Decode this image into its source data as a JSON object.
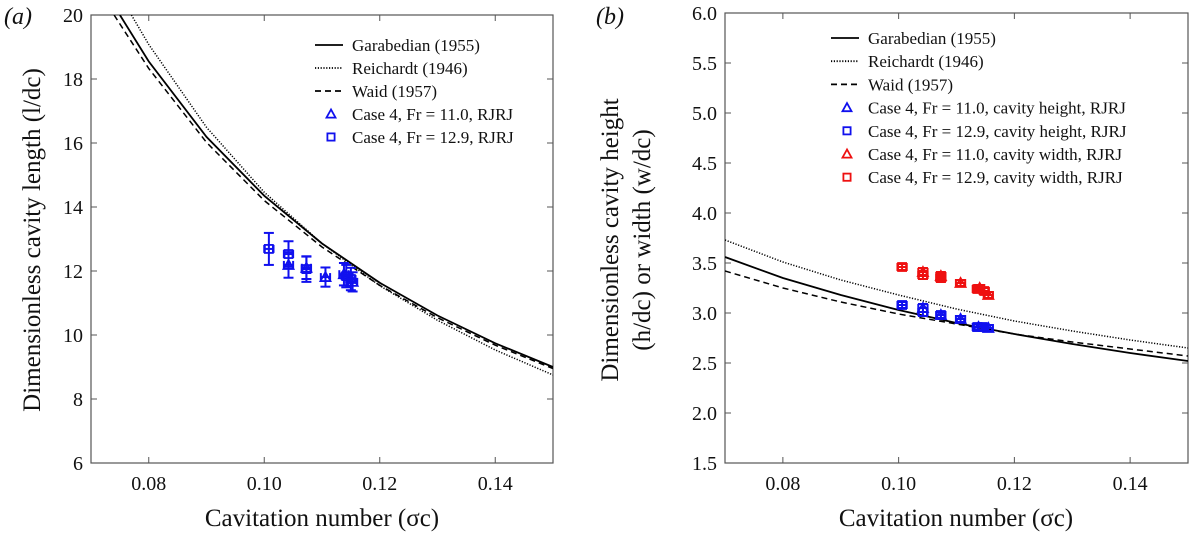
{
  "chart_data": [
    {
      "type": "line",
      "panel_label": "(a)",
      "xlabel": "Cavitation number (σc)",
      "ylabel": "Dimensionless cavity length (l/dc)",
      "xlim": [
        0.07,
        0.15
      ],
      "ylim": [
        6,
        20
      ],
      "xticks": [
        "0.08",
        "0.10",
        "0.12",
        "0.14"
      ],
      "xtick_values": [
        0.08,
        0.1,
        0.12,
        0.14
      ],
      "yticks": [
        "6",
        "8",
        "10",
        "12",
        "14",
        "16",
        "18",
        "20"
      ],
      "ytick_values": [
        6,
        8,
        10,
        12,
        14,
        16,
        18,
        20
      ],
      "grid": false,
      "legend_position": "top-right",
      "series": [
        {
          "name": "Garabedian (1955)",
          "style": "solid",
          "color": "#000000",
          "x": [
            0.075,
            0.08,
            0.09,
            0.1,
            0.11,
            0.12,
            0.13,
            0.14,
            0.15
          ],
          "y": [
            20.0,
            18.55,
            16.19,
            14.35,
            12.86,
            11.63,
            10.61,
            9.74,
            9.0
          ]
        },
        {
          "name": "Reichardt (1946)",
          "style": "dotted",
          "color": "#000000",
          "x": [
            0.077,
            0.08,
            0.09,
            0.1,
            0.11,
            0.12,
            0.13,
            0.14,
            0.15
          ],
          "y": [
            20.0,
            19.08,
            16.49,
            14.46,
            12.86,
            11.54,
            10.46,
            9.53,
            8.75
          ]
        },
        {
          "name": "Waid (1957)",
          "style": "dashed",
          "color": "#000000",
          "x": [
            0.074,
            0.08,
            0.09,
            0.1,
            0.11,
            0.12,
            0.13,
            0.14,
            0.15
          ],
          "y": [
            20.0,
            18.33,
            16.02,
            14.2,
            12.75,
            11.55,
            10.54,
            9.68,
            8.95
          ]
        },
        {
          "name": "Case  4, Fr = 11.0,  RJRJ",
          "marker": "triangle",
          "color": "#1010ee",
          "x": [
            0.1042,
            0.1073,
            0.1106,
            0.1138,
            0.1153
          ],
          "y": [
            12.19,
            12.1,
            11.81,
            11.9,
            11.66
          ],
          "yerr": [
            0.4,
            0.35,
            0.3,
            0.35,
            0.3
          ],
          "xerr": [
            0.0008,
            0.0008,
            0.0008,
            0.0008,
            0.0008
          ]
        },
        {
          "name": "Case  4, Fr = 12.9,  RJRJ",
          "marker": "square",
          "color": "#1010ee",
          "x": [
            0.1008,
            0.1042,
            0.1073,
            0.1142,
            0.115
          ],
          "y": [
            12.69,
            12.53,
            12.06,
            11.84,
            11.75
          ],
          "yerr": [
            0.5,
            0.4,
            0.4,
            0.35,
            0.35
          ],
          "xerr": [
            0.0008,
            0.0008,
            0.0008,
            0.0008,
            0.0008
          ]
        }
      ]
    },
    {
      "type": "line",
      "panel_label": "(b)",
      "xlabel": "Cavitation number (σc)",
      "ylabel_line1": "Dimensionless cavity height",
      "ylabel_line2": "(h/dc) or width (w/dc)",
      "xlim": [
        0.07,
        0.15
      ],
      "ylim": [
        1.5,
        6.0
      ],
      "xticks": [
        "0.08",
        "0.10",
        "0.12",
        "0.14"
      ],
      "xtick_values": [
        0.08,
        0.1,
        0.12,
        0.14
      ],
      "yticks": [
        "1.5",
        "2.0",
        "2.5",
        "3.0",
        "3.5",
        "4.0",
        "4.5",
        "5.0",
        "5.5",
        "6.0"
      ],
      "ytick_values": [
        1.5,
        2.0,
        2.5,
        3.0,
        3.5,
        4.0,
        4.5,
        5.0,
        5.5,
        6.0
      ],
      "grid": false,
      "legend_position": "top-right",
      "series": [
        {
          "name": "Garabedian (1955)",
          "style": "solid",
          "color": "#000000",
          "x": [
            0.07,
            0.08,
            0.09,
            0.1,
            0.11,
            0.12,
            0.13,
            0.14,
            0.15
          ],
          "y": [
            3.56,
            3.35,
            3.18,
            3.03,
            2.9,
            2.79,
            2.69,
            2.6,
            2.52
          ]
        },
        {
          "name": "Reichardt (1946)",
          "style": "dotted",
          "color": "#000000",
          "x": [
            0.07,
            0.08,
            0.09,
            0.1,
            0.11,
            0.12,
            0.13,
            0.14,
            0.15
          ],
          "y": [
            3.73,
            3.51,
            3.33,
            3.18,
            3.04,
            2.92,
            2.82,
            2.73,
            2.65
          ]
        },
        {
          "name": "Waid (1957)",
          "style": "dashed",
          "color": "#000000",
          "x": [
            0.07,
            0.08,
            0.09,
            0.1,
            0.11,
            0.12,
            0.13,
            0.14,
            0.15
          ],
          "y": [
            3.42,
            3.25,
            3.11,
            2.99,
            2.89,
            2.79,
            2.71,
            2.64,
            2.57
          ]
        },
        {
          "name": "Case  4, Fr = 11.0,  cavity height, RJRJ",
          "marker": "triangle",
          "color": "#1010ee",
          "x": [
            0.1042,
            0.1073,
            0.1107,
            0.1138,
            0.1155
          ],
          "y": [
            3.05,
            2.98,
            2.94,
            2.86,
            2.85
          ],
          "yerr": [
            0.04,
            0.03,
            0.03,
            0.03,
            0.03
          ],
          "xerr": [
            0.0008,
            0.0008,
            0.0008,
            0.0008,
            0.0008
          ]
        },
        {
          "name": "Case  4, Fr = 12.9,  cavity height, RJRJ",
          "marker": "square",
          "color": "#1010ee",
          "x": [
            0.1006,
            0.1042,
            0.1073,
            0.1136,
            0.1145
          ],
          "y": [
            3.08,
            3.01,
            2.98,
            2.86,
            2.86
          ],
          "yerr": [
            0.03,
            0.04,
            0.03,
            0.03,
            0.03
          ],
          "xerr": [
            0.0008,
            0.0008,
            0.0008,
            0.0008,
            0.0008
          ]
        },
        {
          "name": "Case  4, Fr = 11.0,  cavity width, RJRJ",
          "marker": "triangle",
          "color": "#ee1010",
          "x": [
            0.1042,
            0.1073,
            0.1107,
            0.114,
            0.1155
          ],
          "y": [
            3.41,
            3.37,
            3.3,
            3.25,
            3.18
          ],
          "yerr": [
            0.04,
            0.04,
            0.03,
            0.03,
            0.03
          ],
          "xerr": [
            0.0008,
            0.0008,
            0.0008,
            0.0008,
            0.0008
          ]
        },
        {
          "name": "Case  4, Fr = 12.9,  cavity width, RJRJ",
          "marker": "square",
          "color": "#ee1010",
          "x": [
            0.1006,
            0.1042,
            0.1073,
            0.1136,
            0.1148
          ],
          "y": [
            3.46,
            3.38,
            3.35,
            3.24,
            3.22
          ],
          "yerr": [
            0.03,
            0.04,
            0.04,
            0.03,
            0.03
          ],
          "xerr": [
            0.0008,
            0.0008,
            0.0008,
            0.0008,
            0.0008
          ]
        }
      ]
    }
  ]
}
